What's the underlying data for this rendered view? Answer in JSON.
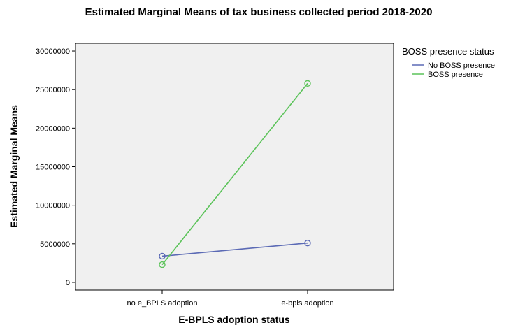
{
  "chart_data": {
    "type": "line",
    "title": "Estimated Marginal Means of tax business collected period 2018-2020",
    "xlabel": "E-BPLS adoption status",
    "ylabel": "Estimated Marginal Means",
    "categories": [
      "no e_BPLS adoption",
      "e-bpls adoption"
    ],
    "yticks": [
      "0",
      "5000000",
      "10000000",
      "15000000",
      "20000000",
      "25000000",
      "30000000"
    ],
    "ylim": [
      -1000000,
      31000000
    ],
    "grid": false,
    "legend": {
      "title": "BOSS presence status",
      "placement": "right"
    },
    "series": [
      {
        "name": "No BOSS presence",
        "values": [
          3400000,
          5100000
        ],
        "color": "#5b6ab5"
      },
      {
        "name": "BOSS presence",
        "values": [
          2300000,
          25800000
        ],
        "color": "#5cc35a"
      }
    ]
  }
}
